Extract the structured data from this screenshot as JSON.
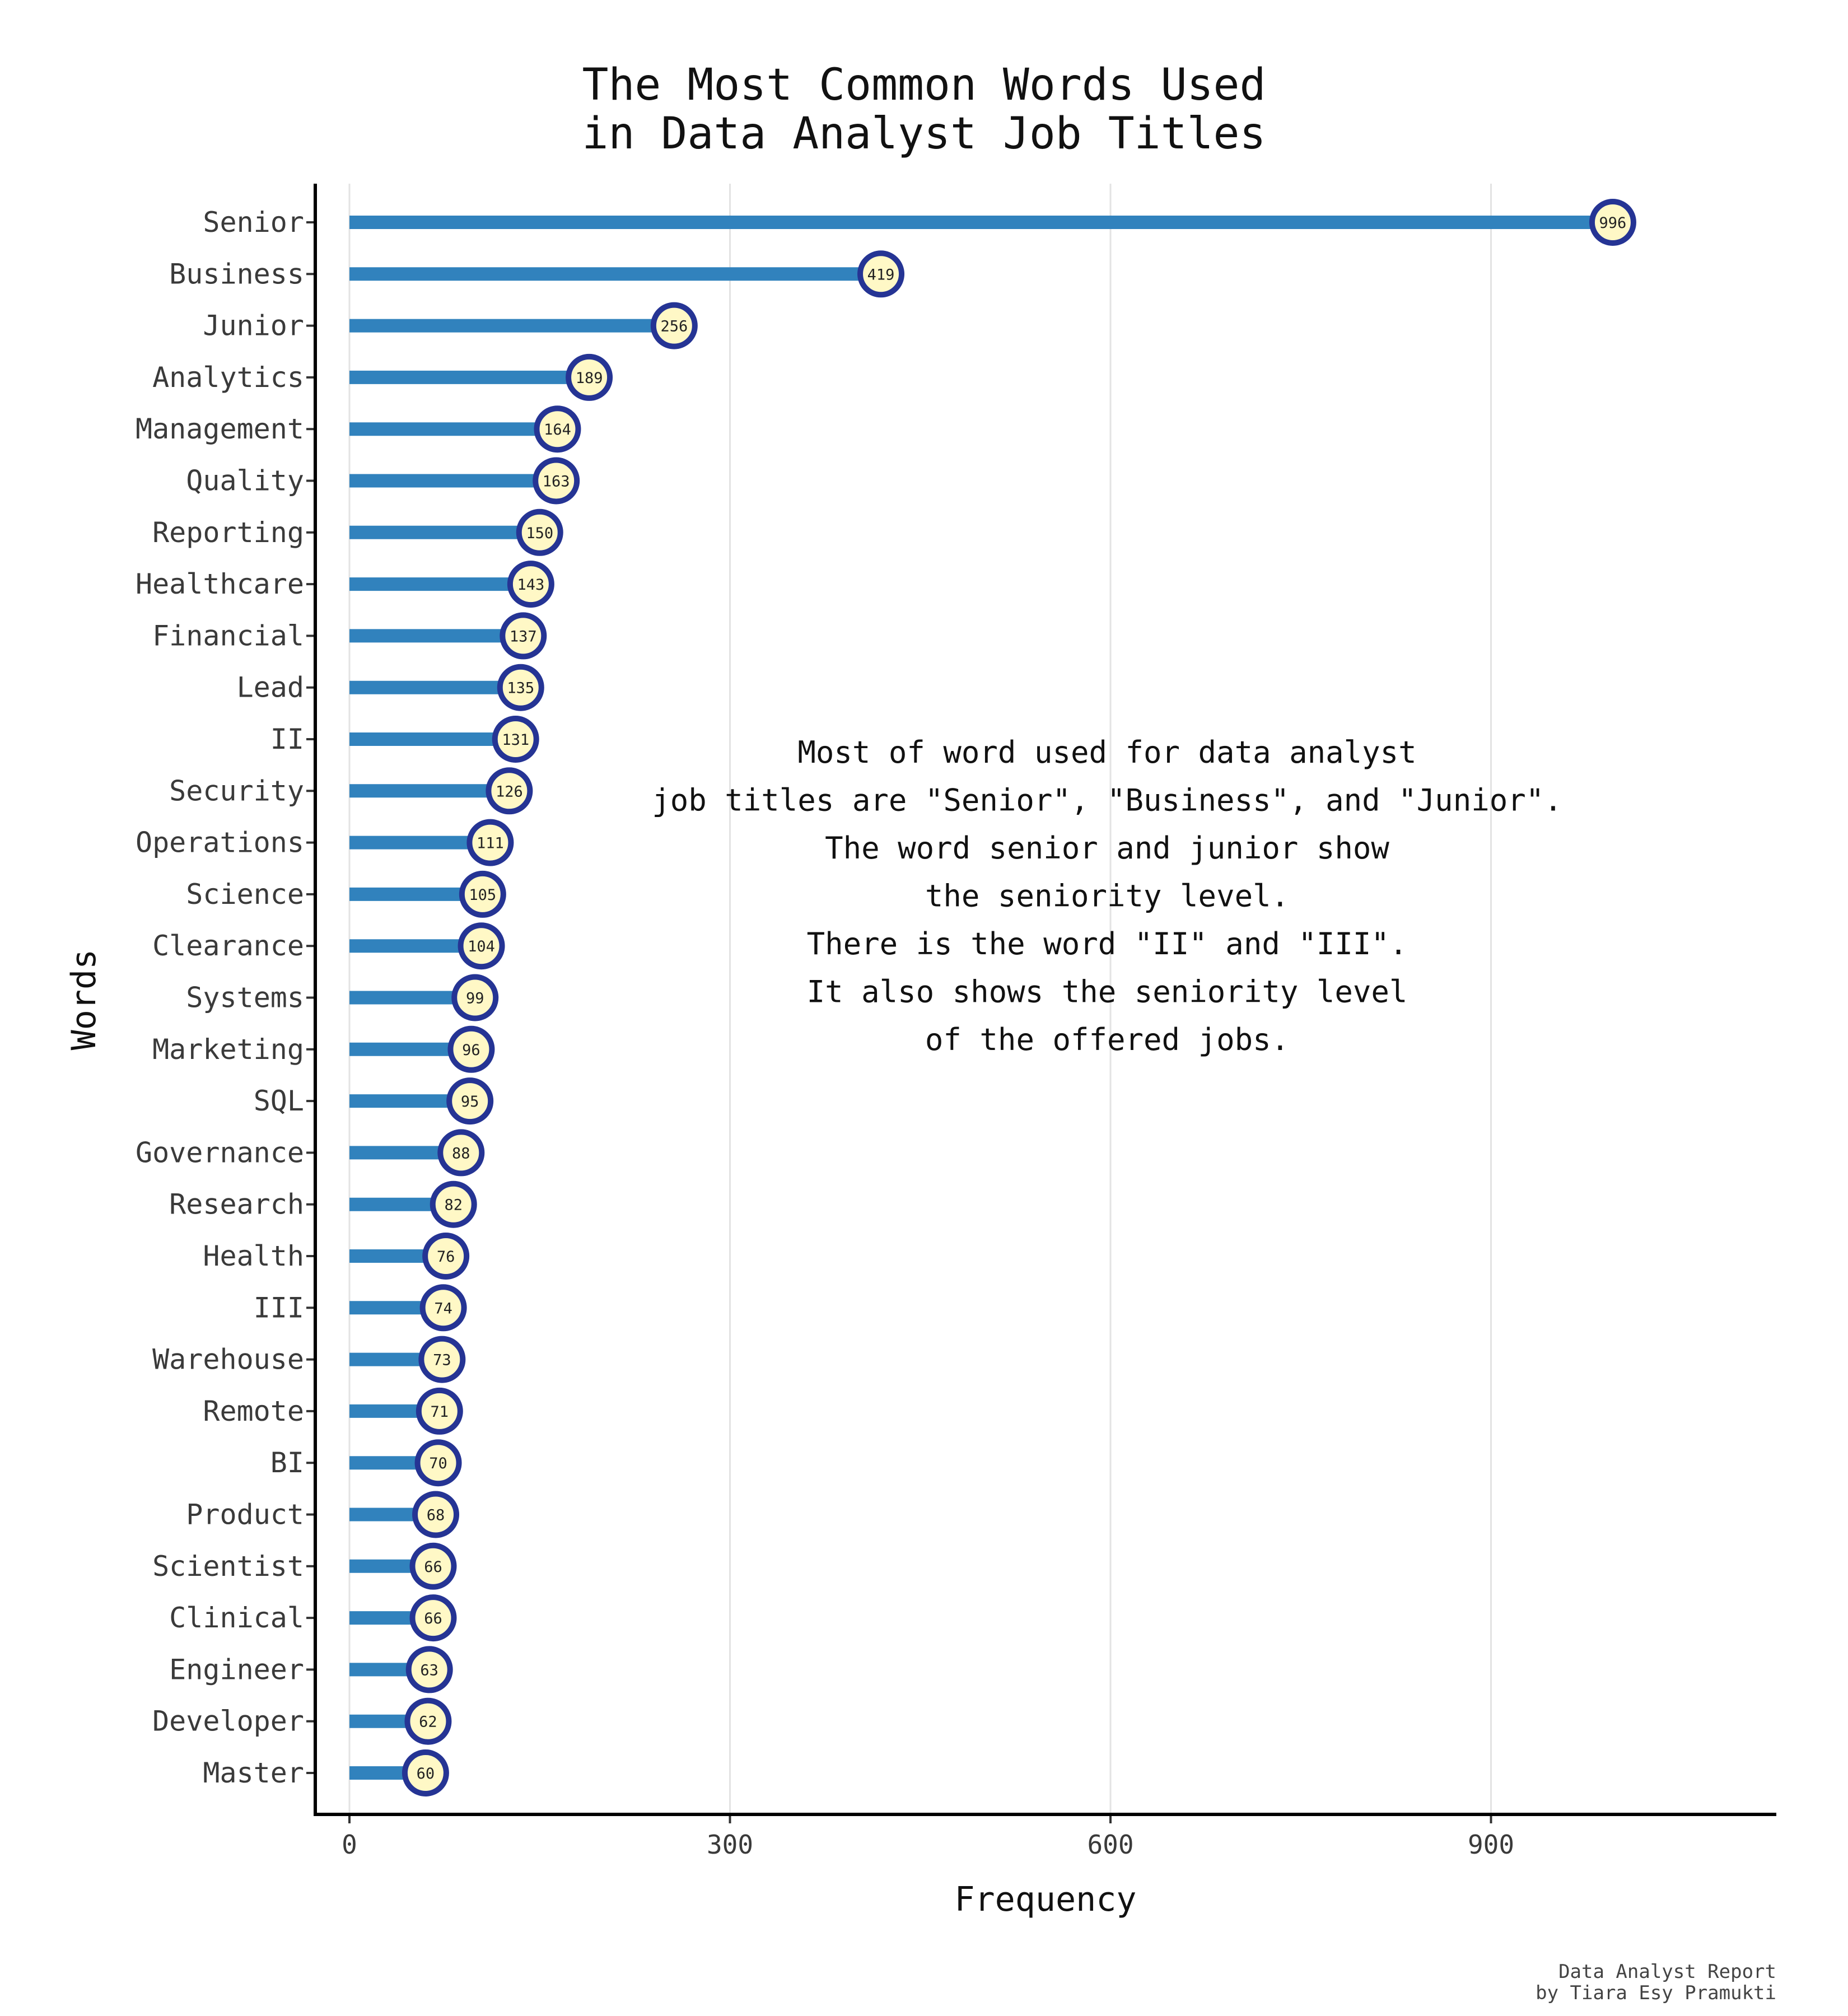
{
  "chart_data": {
    "type": "bar",
    "title_lines": [
      "The Most Common Words Used",
      "in Data Analyst Job Titles"
    ],
    "xlabel": "Frequency",
    "ylabel": "Words",
    "xlim": [
      -27,
      1125
    ],
    "x_ticks": [
      0,
      300,
      600,
      900
    ],
    "grid": "vertical major",
    "categories": [
      "Senior",
      "Business",
      "Junior",
      "Analytics",
      "Management",
      "Quality",
      "Reporting",
      "Healthcare",
      "Financial",
      "Lead",
      "II",
      "Security",
      "Operations",
      "Science",
      "Clearance",
      "Systems",
      "Marketing",
      "SQL",
      "Governance",
      "Research",
      "Health",
      "III",
      "Warehouse",
      "Remote",
      "BI",
      "Product",
      "Scientist",
      "Clinical",
      "Engineer",
      "Developer",
      "Master"
    ],
    "values": [
      996,
      419,
      256,
      189,
      164,
      163,
      150,
      143,
      137,
      135,
      131,
      126,
      111,
      105,
      104,
      99,
      96,
      95,
      88,
      82,
      76,
      74,
      73,
      71,
      70,
      68,
      66,
      66,
      63,
      62,
      60
    ],
    "annotation_lines": [
      "Most of word used for data analyst",
      "job titles are \"Senior\", \"Business\", and \"Junior\".",
      "The word senior and junior show",
      "the seniority level.",
      "There is the word \"II\" and \"III\".",
      "It also shows the seniority level",
      "of the offered jobs."
    ],
    "caption_lines": [
      "Data Analyst Report",
      "by Tiara Esy Pramukti"
    ],
    "colors": {
      "bar": "#3182bd",
      "point_fill": "#fff8c6",
      "point_stroke": "#253494",
      "grid": "#e3e3e3",
      "axis": "#000000"
    }
  }
}
